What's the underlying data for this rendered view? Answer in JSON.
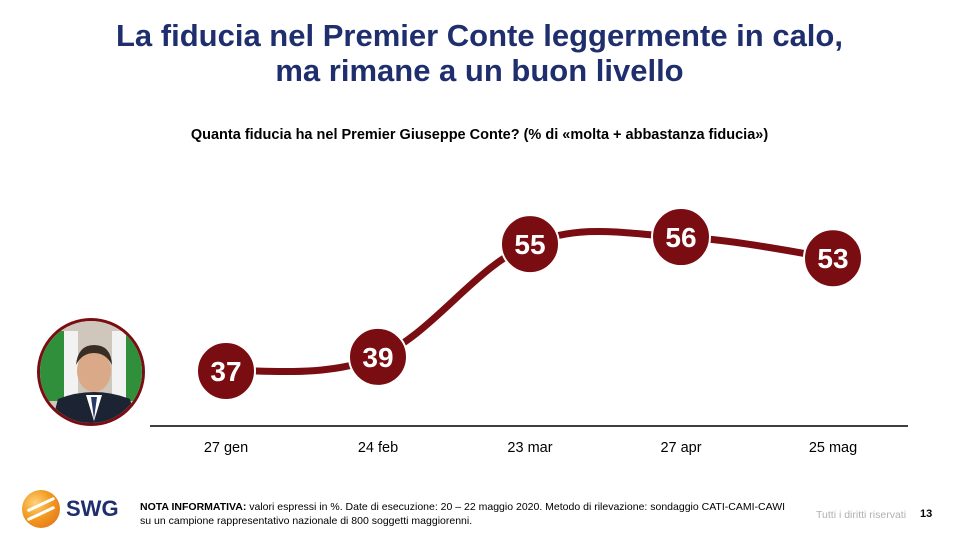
{
  "slide": {
    "title_line1": "La fiducia nel Premier Conte leggermente in calo,",
    "title_line2": "ma rimane a un buon livello",
    "page_number": "13",
    "rights": "Tutti i diritti riservati"
  },
  "footer": {
    "logo_text": "SWG",
    "note_label": "NOTA INFORMATIVA:",
    "note_text": " valori espressi in %. Date di esecuzione: 20 – 22 maggio 2020. Metodo di rilevazione: sondaggio CATI-CAMI-CAWI su un campione rappresentativo nazionale di 800 soggetti maggiorenni."
  },
  "colors": {
    "title": "#1f2f6e",
    "series": "#7a0d12"
  },
  "chart_data": {
    "type": "line",
    "title": "Quanta fiducia ha nel Premier Giuseppe Conte? (% di «molta + abbastanza fiducia»)",
    "categories": [
      "27 gen",
      "24 feb",
      "23 mar",
      "27 apr",
      "25 mag"
    ],
    "values": [
      37,
      39,
      55,
      56,
      53
    ],
    "data_labels": [
      "37",
      "39",
      "55",
      "56",
      "53"
    ],
    "xlabel": "",
    "ylabel": "",
    "grid": false,
    "legend": "none"
  }
}
